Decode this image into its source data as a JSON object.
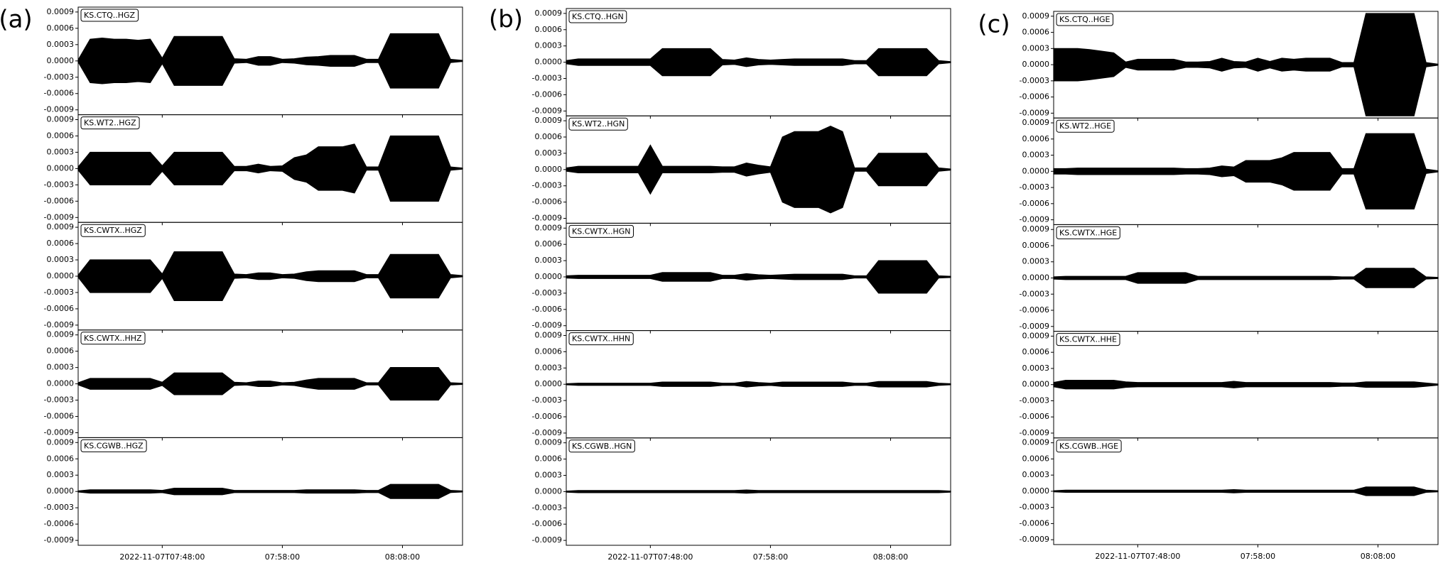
{
  "panel_labels": [
    "(a)",
    "(b)",
    "(c)"
  ],
  "chart_data": [
    {
      "type": "line",
      "x": [
        461,
        462,
        463,
        464,
        465,
        466,
        467,
        468,
        469,
        470,
        471,
        472,
        473,
        474,
        475,
        476,
        477,
        478,
        479,
        480,
        481,
        482,
        483,
        484,
        485,
        486,
        487,
        488,
        489,
        490,
        491,
        492,
        493
      ],
      "xlim": [
        461,
        493
      ],
      "xticks": [
        {
          "value": 468,
          "label": "2022-11-07T07:48:00"
        },
        {
          "value": 478,
          "label": "07:58:00"
        },
        {
          "value": 488,
          "label": "08:08:00"
        }
      ],
      "ylim": [
        -0.00099,
        0.00099
      ],
      "yticks": [
        0.0009,
        0.0006,
        0.0003,
        {
          "value": 0,
          "label": "0.0000"
        },
        -0.0003,
        -0.0006,
        -0.0009
      ],
      "series": [
        {
          "name": "KS.CTQ..HGZ",
          "color": "#000000",
          "values": [
            2e-05,
            0.0004,
            0.00042,
            0.0004,
            0.0004,
            0.00038,
            0.0004,
            5e-05,
            0.00045,
            0.00045,
            0.00045,
            0.00045,
            0.00045,
            4e-05,
            3e-05,
            8e-05,
            8e-05,
            3e-05,
            4e-05,
            7e-05,
            8e-05,
            0.0001,
            0.0001,
            0.0001,
            3e-05,
            3e-05,
            0.0005,
            0.0005,
            0.0005,
            0.0005,
            0.0005,
            3e-05,
            1e-05
          ]
        },
        {
          "name": "KS.WT2..HGZ",
          "color": "#000000",
          "values": [
            3e-05,
            0.0003,
            0.0003,
            0.0003,
            0.0003,
            0.0003,
            0.0003,
            5e-05,
            0.0003,
            0.0003,
            0.0003,
            0.0003,
            0.0003,
            4e-05,
            4e-05,
            8e-05,
            4e-05,
            5e-05,
            0.0002,
            0.00025,
            0.0004,
            0.0004,
            0.0004,
            0.00045,
            3e-05,
            3e-05,
            0.0006,
            0.0006,
            0.0006,
            0.0006,
            0.0006,
            3e-05,
            1e-05
          ]
        },
        {
          "name": "KS.CWTX..HGZ",
          "color": "#000000",
          "values": [
            2e-05,
            0.0003,
            0.0003,
            0.0003,
            0.0003,
            0.0003,
            0.0003,
            4e-05,
            0.00045,
            0.00045,
            0.00045,
            0.00045,
            0.00045,
            4e-05,
            3e-05,
            6e-05,
            6e-05,
            3e-05,
            4e-05,
            8e-05,
            0.0001,
            0.0001,
            0.0001,
            0.0001,
            3e-05,
            3e-05,
            0.0004,
            0.0004,
            0.0004,
            0.0004,
            0.0004,
            3e-05,
            1e-05
          ]
        },
        {
          "name": "KS.CWTX..HHZ",
          "color": "#000000",
          "values": [
            2e-05,
            0.0001,
            0.0001,
            0.0001,
            0.0001,
            0.0001,
            0.0001,
            3e-05,
            0.0002,
            0.0002,
            0.0002,
            0.0002,
            0.0002,
            3e-05,
            2e-05,
            5e-05,
            5e-05,
            2e-05,
            3e-05,
            7e-05,
            0.0001,
            0.0001,
            0.0001,
            0.0001,
            2e-05,
            2e-05,
            0.0003,
            0.0003,
            0.0003,
            0.0003,
            0.0003,
            2e-05,
            1e-05
          ]
        },
        {
          "name": "KS.CGWB..HGZ",
          "color": "#000000",
          "values": [
            1e-05,
            3e-05,
            3e-05,
            3e-05,
            3e-05,
            3e-05,
            3e-05,
            2e-05,
            6e-05,
            6e-05,
            6e-05,
            6e-05,
            6e-05,
            2e-05,
            2e-05,
            2e-05,
            2e-05,
            2e-05,
            2e-05,
            3e-05,
            3e-05,
            3e-05,
            3e-05,
            3e-05,
            2e-05,
            2e-05,
            0.00013,
            0.00013,
            0.00013,
            0.00013,
            0.00013,
            2e-05,
            1e-05
          ]
        }
      ]
    },
    {
      "type": "line",
      "x": [
        461,
        462,
        463,
        464,
        465,
        466,
        467,
        468,
        469,
        470,
        471,
        472,
        473,
        474,
        475,
        476,
        477,
        478,
        479,
        480,
        481,
        482,
        483,
        484,
        485,
        486,
        487,
        488,
        489,
        490,
        491,
        492,
        493
      ],
      "xlim": [
        461,
        493
      ],
      "xticks": [
        {
          "value": 468,
          "label": "2022-11-07T07:48:00"
        },
        {
          "value": 478,
          "label": "07:58:00"
        },
        {
          "value": 488,
          "label": "08:08:00"
        }
      ],
      "ylim": [
        -0.00099,
        0.00099
      ],
      "yticks": [
        0.0009,
        0.0006,
        0.0003,
        {
          "value": 0,
          "label": "0.0000"
        },
        -0.0003,
        -0.0006,
        -0.0009
      ],
      "series": [
        {
          "name": "KS.CTQ..HGN",
          "color": "#000000",
          "values": [
            3e-05,
            6e-05,
            6e-05,
            6e-05,
            6e-05,
            6e-05,
            6e-05,
            6e-05,
            0.00025,
            0.00025,
            0.00025,
            0.00025,
            0.00025,
            5e-05,
            4e-05,
            8e-05,
            5e-05,
            4e-05,
            5e-05,
            6e-05,
            6e-05,
            6e-05,
            6e-05,
            6e-05,
            3e-05,
            3e-05,
            0.00025,
            0.00025,
            0.00025,
            0.00025,
            0.00025,
            3e-05,
            1e-05
          ]
        },
        {
          "name": "KS.WT2..HGN",
          "color": "#000000",
          "values": [
            3e-05,
            6e-05,
            6e-05,
            6e-05,
            6e-05,
            6e-05,
            6e-05,
            0.00045,
            6e-05,
            6e-05,
            6e-05,
            6e-05,
            6e-05,
            5e-05,
            5e-05,
            0.00012,
            8e-05,
            5e-05,
            0.0006,
            0.0007,
            0.0007,
            0.0007,
            0.0008,
            0.0007,
            3e-05,
            3e-05,
            0.0003,
            0.0003,
            0.0003,
            0.0003,
            0.0003,
            3e-05,
            1e-05
          ]
        },
        {
          "name": "KS.CWTX..HGN",
          "color": "#000000",
          "values": [
            2e-05,
            3e-05,
            3e-05,
            3e-05,
            3e-05,
            3e-05,
            3e-05,
            3e-05,
            8e-05,
            8e-05,
            8e-05,
            8e-05,
            8e-05,
            3e-05,
            3e-05,
            6e-05,
            4e-05,
            3e-05,
            4e-05,
            5e-05,
            5e-05,
            5e-05,
            5e-05,
            5e-05,
            2e-05,
            2e-05,
            0.0003,
            0.0003,
            0.0003,
            0.0003,
            0.0003,
            2e-05,
            1e-05
          ]
        },
        {
          "name": "KS.CWTX..HHN",
          "color": "#000000",
          "values": [
            1e-05,
            2e-05,
            2e-05,
            2e-05,
            2e-05,
            2e-05,
            2e-05,
            2e-05,
            4e-05,
            4e-05,
            4e-05,
            4e-05,
            4e-05,
            2e-05,
            2e-05,
            5e-05,
            3e-05,
            2e-05,
            4e-05,
            4e-05,
            4e-05,
            4e-05,
            4e-05,
            4e-05,
            2e-05,
            2e-05,
            5e-05,
            5e-05,
            5e-05,
            5e-05,
            5e-05,
            2e-05,
            1e-05
          ]
        },
        {
          "name": "KS.CGWB..HGN",
          "color": "#000000",
          "values": [
            1e-05,
            2e-05,
            2e-05,
            2e-05,
            2e-05,
            2e-05,
            2e-05,
            2e-05,
            2e-05,
            2e-05,
            2e-05,
            2e-05,
            2e-05,
            2e-05,
            2e-05,
            3e-05,
            2e-05,
            2e-05,
            2e-05,
            2e-05,
            2e-05,
            2e-05,
            2e-05,
            2e-05,
            2e-05,
            2e-05,
            2e-05,
            2e-05,
            2e-05,
            2e-05,
            2e-05,
            2e-05,
            1e-05
          ]
        }
      ]
    },
    {
      "type": "line",
      "x": [
        461,
        462,
        463,
        464,
        465,
        466,
        467,
        468,
        469,
        470,
        471,
        472,
        473,
        474,
        475,
        476,
        477,
        478,
        479,
        480,
        481,
        482,
        483,
        484,
        485,
        486,
        487,
        488,
        489,
        490,
        491,
        492,
        493
      ],
      "xlim": [
        461,
        493
      ],
      "xticks": [
        {
          "value": 468,
          "label": "2022-11-07T07:48:00"
        },
        {
          "value": 478,
          "label": "07:58:00"
        },
        {
          "value": 488,
          "label": "08:08:00"
        }
      ],
      "ylim": [
        -0.00099,
        0.00099
      ],
      "yticks": [
        0.0009,
        0.0006,
        0.0003,
        {
          "value": 0,
          "label": "0.0000"
        },
        -0.0003,
        -0.0006,
        -0.0009
      ],
      "series": [
        {
          "name": "KS.CTQ..HGE",
          "color": "#000000",
          "values": [
            0.0003,
            0.0003,
            0.0003,
            0.00028,
            0.00025,
            0.00022,
            5e-05,
            0.0001,
            0.0001,
            0.0001,
            0.0001,
            5e-05,
            5e-05,
            6e-05,
            0.00012,
            6e-05,
            5e-05,
            0.00012,
            6e-05,
            0.00012,
            0.0001,
            0.00012,
            0.00012,
            0.00012,
            4e-05,
            4e-05,
            0.00095,
            0.00095,
            0.00095,
            0.00095,
            0.00095,
            4e-05,
            1e-05
          ]
        },
        {
          "name": "KS.WT2..HGE",
          "color": "#000000",
          "values": [
            5e-05,
            5e-05,
            6e-05,
            6e-05,
            6e-05,
            6e-05,
            6e-05,
            6e-05,
            6e-05,
            6e-05,
            6e-05,
            5e-05,
            5e-05,
            6e-05,
            0.0001,
            8e-05,
            0.0002,
            0.0002,
            0.0002,
            0.00025,
            0.00035,
            0.00035,
            0.00035,
            0.00035,
            5e-05,
            5e-05,
            0.0007,
            0.0007,
            0.0007,
            0.0007,
            0.0007,
            4e-05,
            1e-05
          ]
        },
        {
          "name": "KS.CWTX..HGE",
          "color": "#000000",
          "values": [
            2e-05,
            3e-05,
            3e-05,
            3e-05,
            3e-05,
            3e-05,
            3e-05,
            0.0001,
            0.0001,
            0.0001,
            0.0001,
            0.0001,
            3e-05,
            3e-05,
            3e-05,
            3e-05,
            3e-05,
            3e-05,
            3e-05,
            3e-05,
            3e-05,
            3e-05,
            3e-05,
            3e-05,
            2e-05,
            2e-05,
            0.00018,
            0.00018,
            0.00018,
            0.00018,
            0.00018,
            2e-05,
            1e-05
          ]
        },
        {
          "name": "KS.CWTX..HHE",
          "color": "#000000",
          "values": [
            4e-05,
            8e-05,
            8e-05,
            8e-05,
            8e-05,
            8e-05,
            5e-05,
            4e-05,
            4e-05,
            4e-05,
            4e-05,
            4e-05,
            4e-05,
            4e-05,
            4e-05,
            6e-05,
            4e-05,
            4e-05,
            4e-05,
            4e-05,
            4e-05,
            4e-05,
            4e-05,
            4e-05,
            3e-05,
            3e-05,
            5e-05,
            5e-05,
            5e-05,
            5e-05,
            5e-05,
            3e-05,
            1e-05
          ]
        },
        {
          "name": "KS.CGWB..HGE",
          "color": "#000000",
          "values": [
            1e-05,
            2e-05,
            2e-05,
            2e-05,
            2e-05,
            2e-05,
            2e-05,
            2e-05,
            2e-05,
            2e-05,
            2e-05,
            2e-05,
            2e-05,
            2e-05,
            2e-05,
            3e-05,
            2e-05,
            2e-05,
            2e-05,
            2e-05,
            2e-05,
            2e-05,
            2e-05,
            2e-05,
            2e-05,
            2e-05,
            8e-05,
            8e-05,
            8e-05,
            8e-05,
            8e-05,
            2e-05,
            1e-05
          ]
        }
      ]
    }
  ]
}
